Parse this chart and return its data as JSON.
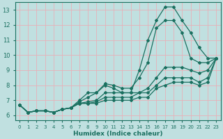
{
  "title": "",
  "xlabel": "Humidex (Indice chaleur)",
  "ylabel": "",
  "bg_color": "#c0e0e0",
  "grid_color": "#e8b0b8",
  "line_color": "#1a7060",
  "xlim": [
    -0.5,
    23.5
  ],
  "ylim": [
    5.7,
    13.5
  ],
  "xticks": [
    0,
    1,
    2,
    3,
    4,
    5,
    6,
    7,
    8,
    9,
    10,
    11,
    12,
    13,
    14,
    15,
    16,
    17,
    18,
    19,
    20,
    21,
    22,
    23
  ],
  "yticks": [
    6,
    7,
    8,
    9,
    10,
    11,
    12,
    13
  ],
  "curves": [
    {
      "x": [
        0,
        1,
        2,
        3,
        4,
        5,
        6,
        7,
        8,
        9,
        10,
        11,
        12,
        13,
        14,
        15,
        16,
        17,
        18,
        19,
        20,
        21,
        22,
        23
      ],
      "y": [
        6.7,
        6.2,
        6.3,
        6.3,
        6.2,
        6.4,
        6.5,
        7.0,
        7.5,
        7.5,
        8.0,
        7.8,
        7.5,
        7.5,
        9.0,
        11.0,
        12.3,
        13.2,
        13.2,
        12.3,
        11.5,
        10.5,
        9.8,
        9.8
      ],
      "marker": true
    },
    {
      "x": [
        0,
        1,
        2,
        3,
        4,
        5,
        6,
        7,
        8,
        9,
        10,
        11,
        12,
        13,
        14,
        15,
        16,
        17,
        18,
        19,
        20,
        21,
        22,
        23
      ],
      "y": [
        6.7,
        6.2,
        6.3,
        6.3,
        6.2,
        6.4,
        6.5,
        6.9,
        7.2,
        7.5,
        8.1,
        8.0,
        7.8,
        7.8,
        8.5,
        9.5,
        11.8,
        12.3,
        12.3,
        11.5,
        9.8,
        9.5,
        9.5,
        9.8
      ],
      "marker": false
    },
    {
      "x": [
        0,
        1,
        2,
        3,
        4,
        5,
        6,
        7,
        8,
        9,
        10,
        11,
        12,
        13,
        14,
        15,
        16,
        17,
        18,
        19,
        20,
        21,
        22,
        23
      ],
      "y": [
        6.7,
        6.2,
        6.3,
        6.3,
        6.2,
        6.4,
        6.5,
        6.8,
        6.9,
        7.0,
        7.5,
        7.5,
        7.5,
        7.5,
        7.5,
        7.8,
        8.5,
        9.2,
        9.2,
        9.2,
        9.0,
        8.8,
        9.0,
        9.8
      ],
      "marker": false
    },
    {
      "x": [
        0,
        1,
        2,
        3,
        4,
        5,
        6,
        7,
        8,
        9,
        10,
        11,
        12,
        13,
        14,
        15,
        16,
        17,
        18,
        19,
        20,
        21,
        22,
        23
      ],
      "y": [
        6.7,
        6.2,
        6.3,
        6.3,
        6.2,
        6.4,
        6.5,
        6.8,
        6.8,
        6.9,
        7.2,
        7.2,
        7.2,
        7.2,
        7.5,
        7.5,
        8.0,
        8.5,
        8.5,
        8.5,
        8.5,
        8.2,
        8.5,
        9.8
      ],
      "marker": false
    },
    {
      "x": [
        0,
        1,
        2,
        3,
        4,
        5,
        6,
        7,
        8,
        9,
        10,
        11,
        12,
        13,
        14,
        15,
        16,
        17,
        18,
        19,
        20,
        21,
        22,
        23
      ],
      "y": [
        6.7,
        6.2,
        6.3,
        6.3,
        6.2,
        6.4,
        6.5,
        6.8,
        6.8,
        6.8,
        7.0,
        7.0,
        7.0,
        7.0,
        7.2,
        7.2,
        7.8,
        8.0,
        8.2,
        8.2,
        8.2,
        8.0,
        8.2,
        9.8
      ],
      "marker": false
    }
  ]
}
